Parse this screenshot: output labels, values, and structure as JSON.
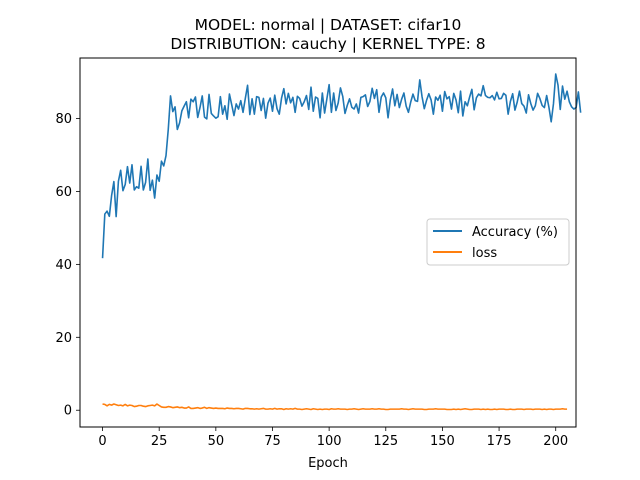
{
  "chart_data": {
    "type": "line",
    "title_line1": "MODEL: normal | DATASET: cifar10",
    "title_line2": "DISTRIBUTION: cauchy | KERNEL TYPE: 8",
    "xlabel": "Epoch",
    "ylabel": "",
    "xlim": [
      -9.95,
      208.95
    ],
    "ylim": [
      -4.6,
      96.6
    ],
    "xticks": [
      0,
      25,
      50,
      75,
      100,
      125,
      150,
      175,
      200
    ],
    "yticks": [
      0,
      20,
      40,
      60,
      80
    ],
    "grid": false,
    "legend_position": "center-right",
    "series": [
      {
        "name": "Accuracy (%)",
        "color": "#1f77b4",
        "x_start": 0,
        "x_step": 1,
        "values": [
          41.7,
          53.8,
          54.6,
          53.2,
          58.9,
          62.7,
          53.1,
          62.8,
          65.8,
          60.2,
          61.9,
          66.8,
          62.3,
          67.3,
          60.4,
          61.3,
          60.9,
          66.9,
          60.4,
          62.5,
          68.9,
          60.3,
          63.1,
          58.2,
          64.5,
          62.8,
          68.3,
          67.0,
          69.8,
          77.0,
          86.2,
          81.9,
          83.2,
          77.0,
          78.8,
          82.1,
          83.4,
          84.6,
          80.2,
          85.3,
          84.6,
          85.9,
          80.3,
          83.0,
          86.2,
          80.4,
          79.9,
          86.6,
          81.4,
          80.7,
          80.1,
          80.5,
          86.0,
          81.2,
          83.5,
          79.8,
          86.7,
          83.8,
          80.8,
          84.0,
          82.6,
          84.9,
          81.7,
          85.5,
          89.1,
          81.1,
          85.4,
          81.2,
          86.0,
          85.8,
          82.2,
          85.5,
          80.1,
          84.2,
          85.6,
          82.0,
          86.4,
          82.7,
          81.2,
          85.6,
          88.2,
          84.0,
          86.9,
          84.3,
          85.8,
          81.7,
          86.1,
          85.5,
          83.4,
          84.6,
          86.3,
          82.5,
          88.6,
          82.0,
          85.9,
          85.5,
          80.2,
          87.0,
          81.5,
          85.4,
          89.3,
          81.7,
          87.0,
          82.2,
          84.3,
          88.4,
          86.1,
          81.4,
          83.6,
          85.4,
          83.1,
          82.6,
          84.0,
          81.5,
          85.8,
          86.0,
          86.5,
          83.3,
          84.7,
          88.3,
          85.5,
          87.9,
          81.7,
          85.9,
          87.0,
          85.7,
          80.2,
          85.1,
          88.1,
          83.5,
          86.6,
          83.0,
          85.3,
          87.0,
          83.4,
          81.7,
          84.5,
          86.7,
          84.9,
          84.7,
          90.6,
          86.0,
          82.7,
          85.0,
          86.8,
          85.1,
          81.2,
          85.9,
          85.0,
          86.4,
          82.0,
          87.4,
          85.4,
          86.0,
          82.6,
          86.9,
          85.1,
          81.6,
          87.5,
          80.7,
          84.6,
          83.5,
          85.9,
          88.0,
          82.4,
          85.7,
          86.7,
          86.2,
          89.0,
          86.3,
          85.8,
          85.7,
          86.3,
          85.1,
          87.2,
          85.4,
          85.5,
          86.9,
          86.4,
          81.2,
          84.7,
          86.8,
          82.3,
          84.5,
          87.5,
          84.1,
          83.4,
          81.5,
          86.5,
          84.1,
          82.3,
          83.5,
          86.9,
          85.5,
          83.6,
          83.0,
          86.3,
          83.1,
          79.1,
          84.0,
          92.2,
          89.2,
          82.5,
          88.9,
          85.3,
          87.5,
          84.6,
          83.2,
          82.6,
          83.0,
          87.3,
          81.6
        ]
      },
      {
        "name": "loss",
        "color": "#ff7f0e",
        "x_start": 0,
        "x_step": 1,
        "values": [
          1.7,
          1.6,
          1.2,
          1.6,
          1.4,
          1.7,
          1.5,
          1.3,
          1.4,
          1.2,
          1.6,
          1.2,
          1.4,
          1.3,
          1.0,
          1.1,
          1.3,
          1.3,
          1.1,
          1.0,
          1.2,
          1.3,
          1.4,
          1.2,
          1.7,
          1.3,
          0.9,
          0.8,
          0.8,
          1.0,
          0.9,
          0.7,
          0.8,
          0.9,
          0.7,
          0.8,
          0.6,
          0.6,
          0.9,
          0.5,
          0.5,
          0.6,
          0.7,
          0.5,
          0.6,
          0.8,
          0.5,
          0.7,
          0.6,
          0.5,
          0.6,
          0.5,
          0.5,
          0.5,
          0.4,
          0.6,
          0.5,
          0.5,
          0.4,
          0.5,
          0.5,
          0.4,
          0.3,
          0.5,
          0.5,
          0.4,
          0.4,
          0.3,
          0.4,
          0.3,
          0.4,
          0.5,
          0.3,
          0.3,
          0.4,
          0.3,
          0.5,
          0.3,
          0.4,
          0.4,
          0.2,
          0.4,
          0.3,
          0.4,
          0.3,
          0.5,
          0.3,
          0.3,
          0.2,
          0.3,
          0.4,
          0.3,
          0.2,
          0.4,
          0.3,
          0.2,
          0.3,
          0.2,
          0.3,
          0.3,
          0.2,
          0.4,
          0.3,
          0.3,
          0.4,
          0.3,
          0.3,
          0.3,
          0.2,
          0.3,
          0.3,
          0.4,
          0.3,
          0.2,
          0.3,
          0.4,
          0.3,
          0.3,
          0.3,
          0.4,
          0.3,
          0.3,
          0.4,
          0.3,
          0.3,
          0.2,
          0.2,
          0.3,
          0.3,
          0.3,
          0.3,
          0.3,
          0.4,
          0.3,
          0.3,
          0.2,
          0.3,
          0.4,
          0.3,
          0.3,
          0.3,
          0.3,
          0.2,
          0.2,
          0.3,
          0.3,
          0.3,
          0.4,
          0.3,
          0.3,
          0.3,
          0.3,
          0.2,
          0.2,
          0.2,
          0.3,
          0.2,
          0.3,
          0.2,
          0.3,
          0.4,
          0.3,
          0.2,
          0.2,
          0.3,
          0.3,
          0.3,
          0.2,
          0.3,
          0.2,
          0.3,
          0.2,
          0.2,
          0.3,
          0.2,
          0.3,
          0.3,
          0.3,
          0.2,
          0.2,
          0.3,
          0.2,
          0.2,
          0.3,
          0.3,
          0.3,
          0.2,
          0.3,
          0.3,
          0.3,
          0.2,
          0.3,
          0.3,
          0.3,
          0.2,
          0.3,
          0.2,
          0.3,
          0.3,
          0.2,
          0.3,
          0.3,
          0.3,
          0.4,
          0.3,
          0.3
        ]
      }
    ]
  }
}
